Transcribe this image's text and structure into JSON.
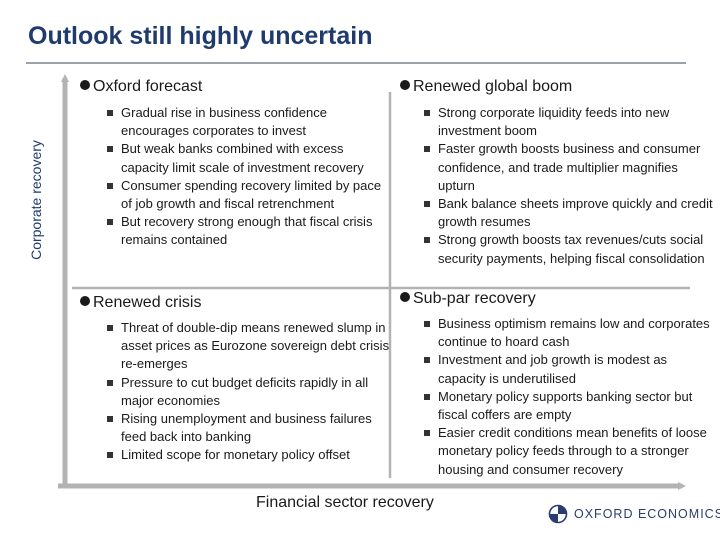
{
  "title": "Outlook still highly uncertain",
  "axes": {
    "y_label": "Corporate recovery",
    "x_label": "Financial sector recovery"
  },
  "quadrants": {
    "top_left": {
      "heading": "Oxford forecast",
      "bullets": [
        "Gradual rise in business confidence encourages corporates to invest",
        "But weak banks combined with excess capacity limit scale of investment recovery",
        "Consumer spending recovery limited by pace of job growth and fiscal retrenchment",
        "But recovery strong enough that fiscal crisis remains contained"
      ]
    },
    "top_right": {
      "heading": "Renewed global boom",
      "bullets": [
        "Strong corporate liquidity feeds into new investment boom",
        "Faster growth boosts business and consumer confidence, and trade multiplier magnifies upturn",
        "Bank balance sheets improve quickly and credit growth resumes",
        "Strong growth boosts tax revenues/cuts social security payments, helping fiscal consolidation"
      ]
    },
    "bottom_left": {
      "heading": "Renewed crisis",
      "bullets": [
        "Threat of double-dip means renewed slump in asset prices as Eurozone sovereign debt crisis re-emerges",
        "Pressure to cut budget deficits rapidly in all major economies",
        "Rising unemployment and business failures feed back into banking",
        "Limited scope for monetary policy offset"
      ]
    },
    "bottom_right": {
      "heading": "Sub-par recovery",
      "bullets": [
        "Business optimism remains low and corporates continue to hoard cash",
        "Investment and job growth is modest as capacity is underutilised",
        "Monetary policy supports banking sector but fiscal coffers are empty",
        "Easier credit conditions mean benefits of loose monetary policy feeds through to a stronger housing and consumer recovery"
      ]
    }
  },
  "logo": {
    "text": "OXFORD ECONOMICS",
    "icon": "oxford-economics-logo-icon"
  },
  "colors": {
    "title": "#1f3b6e",
    "axis": "#b3b3b3",
    "rule": "#9aa3ad"
  }
}
